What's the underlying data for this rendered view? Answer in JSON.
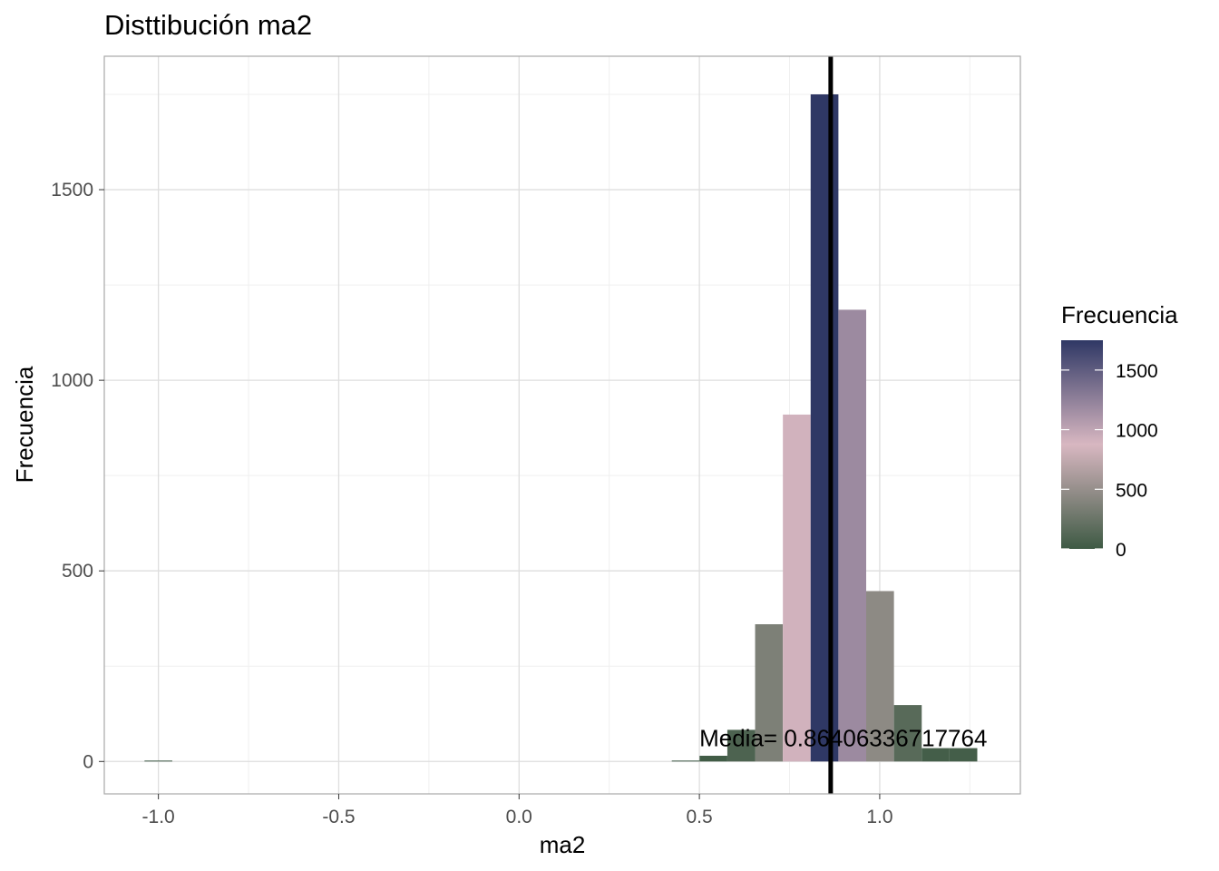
{
  "chart_data": {
    "type": "bar",
    "title": "Disttibución ma2",
    "xlabel": "ma2",
    "ylabel": "Frecuencia",
    "xlim": [
      -1.15,
      1.39
    ],
    "ylim": [
      -85,
      1850
    ],
    "x_ticks": [
      {
        "value": -1.0,
        "label": "-1.0"
      },
      {
        "value": -0.5,
        "label": "-0.5"
      },
      {
        "value": 0.0,
        "label": "0.0"
      },
      {
        "value": 0.5,
        "label": "0.5"
      },
      {
        "value": 1.0,
        "label": "1.0"
      }
    ],
    "y_ticks": [
      {
        "value": 0,
        "label": "0"
      },
      {
        "value": 500,
        "label": "500"
      },
      {
        "value": 1000,
        "label": "1000"
      },
      {
        "value": 1500,
        "label": "1500"
      }
    ],
    "bin_width": 0.077,
    "bins": [
      {
        "x": -1.0,
        "count": 1
      },
      {
        "x": 0.462,
        "count": 1
      },
      {
        "x": 0.539,
        "count": 15
      },
      {
        "x": 0.616,
        "count": 83
      },
      {
        "x": 0.693,
        "count": 360
      },
      {
        "x": 0.77,
        "count": 910
      },
      {
        "x": 0.847,
        "count": 1750
      },
      {
        "x": 0.924,
        "count": 1185
      },
      {
        "x": 1.001,
        "count": 447
      },
      {
        "x": 1.078,
        "count": 148
      },
      {
        "x": 1.155,
        "count": 35
      },
      {
        "x": 1.232,
        "count": 35
      }
    ],
    "mean_line": {
      "value": 0.86406336717764
    },
    "annotation": {
      "text": "Media= 0.86406336717764",
      "x": 0.5,
      "y": 40
    },
    "legend": {
      "title": "Frecuencia",
      "placement": "right",
      "labels": [
        {
          "value": 0,
          "label": "0"
        },
        {
          "value": 500,
          "label": "500"
        },
        {
          "value": 1000,
          "label": "1000"
        },
        {
          "value": 1500,
          "label": "1500"
        }
      ],
      "range": [
        0,
        1750
      ]
    },
    "colors": {
      "low": "#3e5a44",
      "mid": "#d8b7c1",
      "high": "#2f3865",
      "mean_line": "#000000",
      "grid": "#dedede",
      "panel_border": "#a8a8a8"
    },
    "grid": true
  }
}
